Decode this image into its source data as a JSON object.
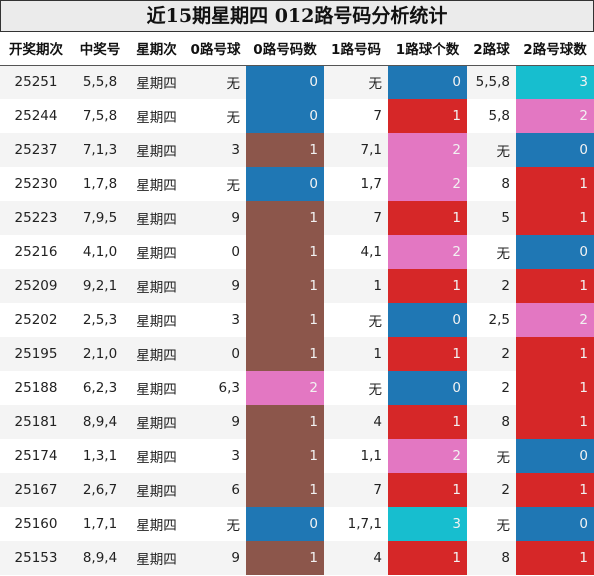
{
  "title": "近15期星期四 012路号码分析统计",
  "headers": [
    "开奖期次",
    "中奖号",
    "星期次",
    "0路号球",
    "0路号码数",
    "1路号码",
    "1路球个数",
    "2路球",
    "2路号球数"
  ],
  "count_colors": {
    "0": "#1f77b4",
    "1": "#8c564b",
    "2": "#e377c2",
    "3": "#17becf"
  },
  "count_colors_col1": {
    "0": "#1f77b4",
    "1": "#d62728",
    "2": "#e377c2",
    "3": "#17becf"
  },
  "count_colors_col2": {
    "0": "#1f77b4",
    "1": "#d62728",
    "2": "#e377c2",
    "3": "#17becf"
  },
  "rows": [
    {
      "issue": "25251",
      "nums": "5,5,8",
      "week": "星期四",
      "r0": "无",
      "c0": "0",
      "r1": "无",
      "c1": "0",
      "r2": "5,5,8",
      "c2": "3"
    },
    {
      "issue": "25244",
      "nums": "7,5,8",
      "week": "星期四",
      "r0": "无",
      "c0": "0",
      "r1": "7",
      "c1": "1",
      "r2": "5,8",
      "c2": "2"
    },
    {
      "issue": "25237",
      "nums": "7,1,3",
      "week": "星期四",
      "r0": "3",
      "c0": "1",
      "r1": "7,1",
      "c1": "2",
      "r2": "无",
      "c2": "0"
    },
    {
      "issue": "25230",
      "nums": "1,7,8",
      "week": "星期四",
      "r0": "无",
      "c0": "0",
      "r1": "1,7",
      "c1": "2",
      "r2": "8",
      "c2": "1"
    },
    {
      "issue": "25223",
      "nums": "7,9,5",
      "week": "星期四",
      "r0": "9",
      "c0": "1",
      "r1": "7",
      "c1": "1",
      "r2": "5",
      "c2": "1"
    },
    {
      "issue": "25216",
      "nums": "4,1,0",
      "week": "星期四",
      "r0": "0",
      "c0": "1",
      "r1": "4,1",
      "c1": "2",
      "r2": "无",
      "c2": "0"
    },
    {
      "issue": "25209",
      "nums": "9,2,1",
      "week": "星期四",
      "r0": "9",
      "c0": "1",
      "r1": "1",
      "c1": "1",
      "r2": "2",
      "c2": "1"
    },
    {
      "issue": "25202",
      "nums": "2,5,3",
      "week": "星期四",
      "r0": "3",
      "c0": "1",
      "r1": "无",
      "c1": "0",
      "r2": "2,5",
      "c2": "2"
    },
    {
      "issue": "25195",
      "nums": "2,1,0",
      "week": "星期四",
      "r0": "0",
      "c0": "1",
      "r1": "1",
      "c1": "1",
      "r2": "2",
      "c2": "1"
    },
    {
      "issue": "25188",
      "nums": "6,2,3",
      "week": "星期四",
      "r0": "6,3",
      "c0": "2",
      "r1": "无",
      "c1": "0",
      "r2": "2",
      "c2": "1"
    },
    {
      "issue": "25181",
      "nums": "8,9,4",
      "week": "星期四",
      "r0": "9",
      "c0": "1",
      "r1": "4",
      "c1": "1",
      "r2": "8",
      "c2": "1"
    },
    {
      "issue": "25174",
      "nums": "1,3,1",
      "week": "星期四",
      "r0": "3",
      "c0": "1",
      "r1": "1,1",
      "c1": "2",
      "r2": "无",
      "c2": "0"
    },
    {
      "issue": "25167",
      "nums": "2,6,7",
      "week": "星期四",
      "r0": "6",
      "c0": "1",
      "r1": "7",
      "c1": "1",
      "r2": "2",
      "c2": "1"
    },
    {
      "issue": "25160",
      "nums": "1,7,1",
      "week": "星期四",
      "r0": "无",
      "c0": "0",
      "r1": "1,7,1",
      "c1": "3",
      "r2": "无",
      "c2": "0"
    },
    {
      "issue": "25153",
      "nums": "8,9,4",
      "week": "星期四",
      "r0": "9",
      "c0": "1",
      "r1": "4",
      "c1": "1",
      "r2": "8",
      "c2": "1"
    }
  ]
}
